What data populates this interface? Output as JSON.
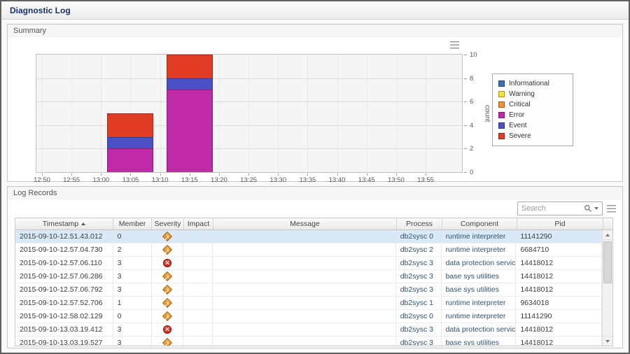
{
  "title_bar": {
    "title": "Diagnostic Log"
  },
  "summary_panel": {
    "title": "Summary",
    "chart_data": {
      "type": "bar",
      "stacked": true,
      "title": "",
      "xlabel": "",
      "ylabel": "count",
      "ylim": [
        0,
        10
      ],
      "y_ticks": [
        0,
        2,
        4,
        6,
        8,
        10
      ],
      "x_ticks": [
        "12:50",
        "12:55",
        "13:00",
        "13:05",
        "13:10",
        "13:15",
        "13:20",
        "13:25",
        "13:30",
        "13:35",
        "13:40",
        "13:45",
        "13:50",
        "13:55"
      ],
      "grid": true,
      "legend_position": "right",
      "legend": [
        {
          "label": "Informational",
          "color": "#3f6eb5"
        },
        {
          "label": "Warning",
          "color": "#f6e33b"
        },
        {
          "label": "Critical",
          "color": "#f0913b"
        },
        {
          "label": "Error",
          "color": "#c02aa8"
        },
        {
          "label": "Event",
          "color": "#4b50c6"
        },
        {
          "label": "Severe",
          "color": "#e23b24"
        }
      ],
      "bars": [
        {
          "x": "13:05",
          "total": 5,
          "segments": [
            {
              "name": "Error",
              "value": 2
            },
            {
              "name": "Event",
              "value": 1
            },
            {
              "name": "Severe",
              "value": 2
            }
          ]
        },
        {
          "x": "13:15",
          "total": 10,
          "segments": [
            {
              "name": "Error",
              "value": 7
            },
            {
              "name": "Event",
              "value": 1
            },
            {
              "name": "Severe",
              "value": 2
            }
          ]
        }
      ]
    }
  },
  "log_records_panel": {
    "title": "Log Records",
    "search_placeholder": "Search",
    "table": {
      "columns": [
        {
          "key": "timestamp",
          "label": "Timestamp",
          "sort": "asc"
        },
        {
          "key": "member",
          "label": "Member"
        },
        {
          "key": "severity",
          "label": "Severity"
        },
        {
          "key": "impact",
          "label": "Impact"
        },
        {
          "key": "message",
          "label": "Message"
        },
        {
          "key": "process",
          "label": "Process"
        },
        {
          "key": "component",
          "label": "Component"
        },
        {
          "key": "pid",
          "label": "Pid"
        }
      ],
      "rows": [
        {
          "timestamp": "2015-09-10-12.51.43.012",
          "member": "0",
          "severity": "warning",
          "impact": "",
          "message": "",
          "process": "db2sysc 0",
          "component": "runtime interpreter",
          "pid": "11141290",
          "selected": true
        },
        {
          "timestamp": "2015-09-10-12.57.04.730",
          "member": "2",
          "severity": "warning",
          "impact": "",
          "message": "",
          "process": "db2sysc 2",
          "component": "runtime interpreter",
          "pid": "6684710",
          "selected": false
        },
        {
          "timestamp": "2015-09-10-12.57.06.110",
          "member": "3",
          "severity": "error",
          "impact": "",
          "message": "",
          "process": "db2sysc 3",
          "component": "data protection services",
          "pid": "14418012",
          "selected": false
        },
        {
          "timestamp": "2015-09-10-12.57.06.286",
          "member": "3",
          "severity": "warning",
          "impact": "",
          "message": "",
          "process": "db2sysc 3",
          "component": "base sys utilities",
          "pid": "14418012",
          "selected": false
        },
        {
          "timestamp": "2015-09-10-12.57.06.792",
          "member": "3",
          "severity": "warning",
          "impact": "",
          "message": "",
          "process": "db2sysc 3",
          "component": "base sys utilities",
          "pid": "14418012",
          "selected": false
        },
        {
          "timestamp": "2015-09-10-12.57.52.706",
          "member": "1",
          "severity": "warning",
          "impact": "",
          "message": "",
          "process": "db2sysc 1",
          "component": "runtime interpreter",
          "pid": "9634018",
          "selected": false
        },
        {
          "timestamp": "2015-09-10-12.58.02.129",
          "member": "0",
          "severity": "warning",
          "impact": "",
          "message": "",
          "process": "db2sysc 0",
          "component": "runtime interpreter",
          "pid": "11141290",
          "selected": false
        },
        {
          "timestamp": "2015-09-10-13.03.19.412",
          "member": "3",
          "severity": "error",
          "impact": "",
          "message": "",
          "process": "db2sysc 3",
          "component": "data protection services",
          "pid": "14418012",
          "selected": false
        },
        {
          "timestamp": "2015-09-10-13.03.19.527",
          "member": "3",
          "severity": "warning",
          "impact": "",
          "message": "",
          "process": "db2sysc 3",
          "component": "base sys utilities",
          "pid": "14418012",
          "selected": false
        }
      ]
    }
  }
}
